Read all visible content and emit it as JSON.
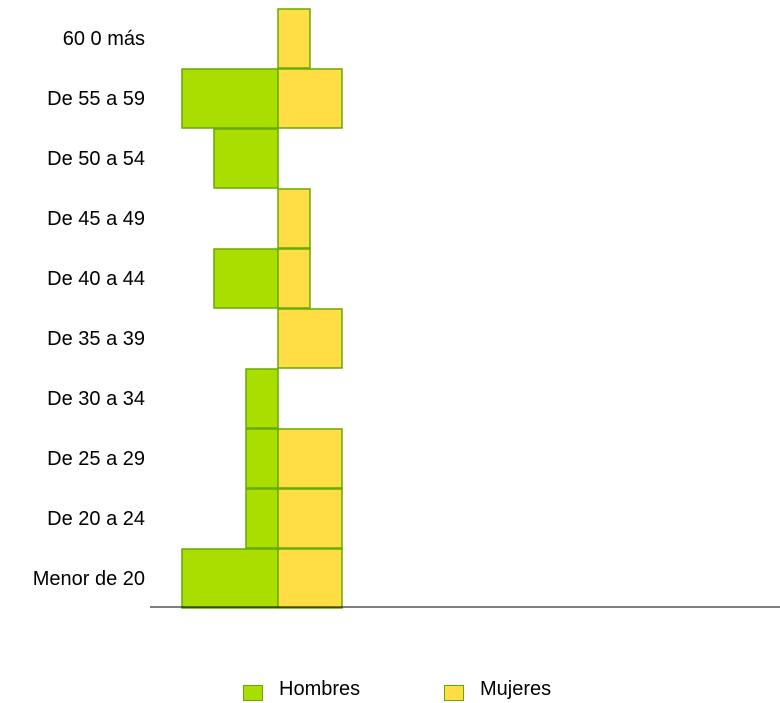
{
  "chart_data": {
    "type": "bar",
    "orientation": "horizontal-population-pyramid",
    "title": "",
    "xlabel": "",
    "ylabel": "",
    "categories": [
      "Menor de 20",
      "De 20 a 24",
      "De 25 a 29",
      "De 30 a 34",
      "De 35 a 39",
      "De 40 a 44",
      "De 45 a 49",
      "De 50 a  54",
      "De 55 a 59",
      "60 0 más"
    ],
    "series": [
      {
        "name": "Hombres",
        "color": "#aadd00",
        "values": [
          3,
          1,
          1,
          1,
          0,
          2,
          0,
          2,
          3,
          0
        ],
        "side": "left"
      },
      {
        "name": "Mujeres",
        "color": "#ffdd44",
        "values": [
          2,
          2,
          2,
          0,
          2,
          1,
          1,
          0,
          2,
          1
        ],
        "side": "right"
      }
    ],
    "border_color": "#66aa00",
    "legend_position": "bottom",
    "grid": false
  },
  "legend": {
    "hombres": "Hombres",
    "mujeres": "Mujeres"
  }
}
